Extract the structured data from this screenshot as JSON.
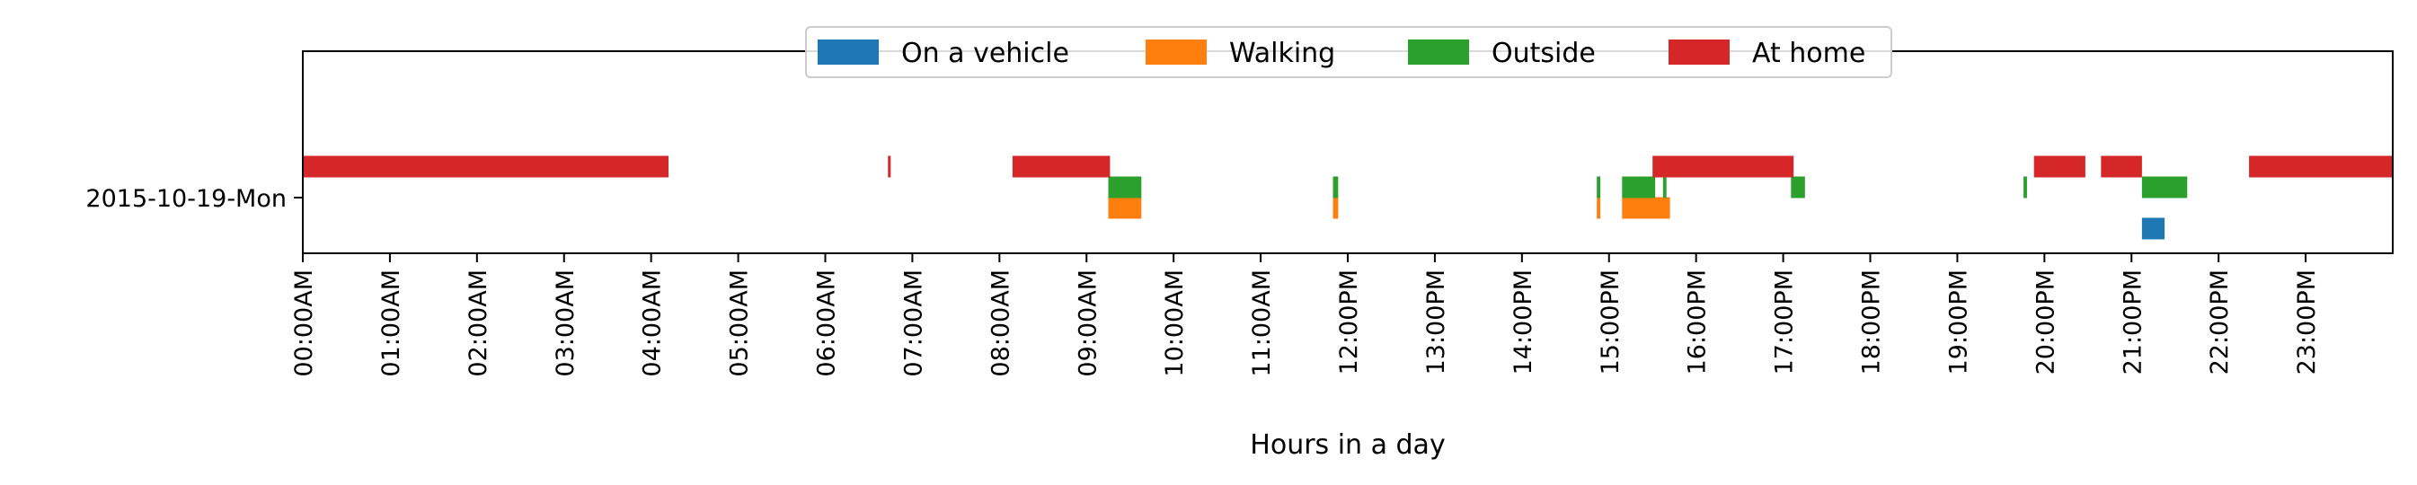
{
  "chart_data": {
    "type": "timeline",
    "xlabel": "Hours in a day",
    "ylabel": "",
    "xlim_hours": [
      0,
      24
    ],
    "x_ticks": [
      "00:00AM",
      "01:00AM",
      "02:00AM",
      "03:00AM",
      "04:00AM",
      "05:00AM",
      "06:00AM",
      "07:00AM",
      "08:00AM",
      "09:00AM",
      "10:00AM",
      "11:00AM",
      "12:00PM",
      "13:00PM",
      "14:00PM",
      "15:00PM",
      "16:00PM",
      "17:00PM",
      "18:00PM",
      "19:00PM",
      "20:00PM",
      "21:00PM",
      "22:00PM",
      "23:00PM"
    ],
    "categories": [
      "2015-10-19-Mon"
    ],
    "legend_position": "top-center",
    "grid": false,
    "series": [
      {
        "name": "On a vehicle",
        "color": "#1f77b4",
        "intervals": [
          [
            21.12,
            21.38
          ]
        ]
      },
      {
        "name": "Walking",
        "color": "#ff7f0e",
        "intervals": [
          [
            9.25,
            9.63
          ],
          [
            11.83,
            11.89
          ],
          [
            14.86,
            14.9
          ],
          [
            15.15,
            15.7
          ]
        ]
      },
      {
        "name": "Outside",
        "color": "#2ca02c",
        "intervals": [
          [
            9.25,
            9.63
          ],
          [
            11.83,
            11.89
          ],
          [
            14.86,
            14.9
          ],
          [
            15.15,
            15.53
          ],
          [
            15.62,
            15.66
          ],
          [
            17.09,
            17.25
          ],
          [
            19.76,
            19.8
          ],
          [
            21.12,
            21.64
          ]
        ]
      },
      {
        "name": "At home",
        "color": "#d62728",
        "intervals": [
          [
            0.0,
            4.2
          ],
          [
            6.72,
            6.75
          ],
          [
            8.15,
            9.27
          ],
          [
            15.5,
            17.12
          ],
          [
            19.88,
            20.47
          ],
          [
            20.65,
            21.12
          ],
          [
            22.35,
            24.0
          ]
        ]
      }
    ]
  }
}
